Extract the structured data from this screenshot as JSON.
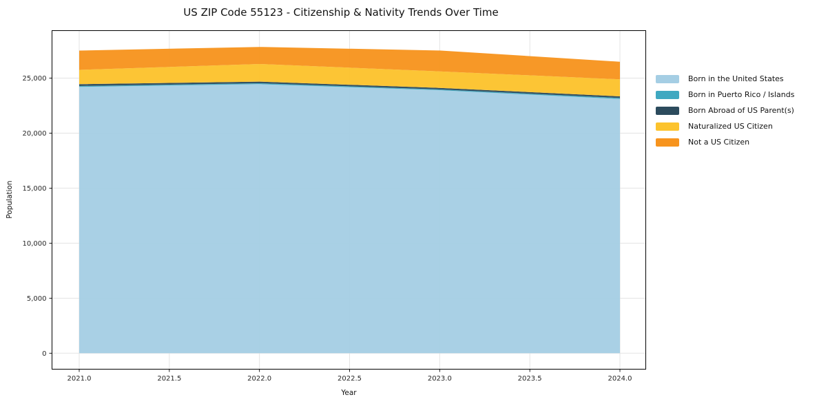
{
  "chart_data": {
    "type": "area",
    "stacked": true,
    "title": "US ZIP Code 55123 - Citizenship & Nativity Trends Over Time",
    "xlabel": "Year",
    "ylabel": "Population",
    "x": [
      2021,
      2022,
      2023,
      2024
    ],
    "series": [
      {
        "name": "Born in the United States",
        "color": "#a5cee4",
        "values": [
          24200,
          24450,
          23900,
          23100
        ]
      },
      {
        "name": "Born in Puerto Rico / Islands",
        "color": "#3fa8c1",
        "values": [
          80,
          80,
          70,
          90
        ]
      },
      {
        "name": "Born Abroad of US Parent(s)",
        "color": "#2c4b5d",
        "values": [
          170,
          150,
          140,
          150
        ]
      },
      {
        "name": "Naturalized US Citizen",
        "color": "#fcc32d",
        "values": [
          1300,
          1600,
          1500,
          1550
        ]
      },
      {
        "name": "Not a US Citizen",
        "color": "#f7941e",
        "values": [
          1750,
          1550,
          1900,
          1600
        ]
      }
    ],
    "totals": [
      27500,
      27830,
      27510,
      26490
    ],
    "xticks": [
      {
        "v": 2021.0,
        "label": "2021.0"
      },
      {
        "v": 2021.5,
        "label": "2021.5"
      },
      {
        "v": 2022.0,
        "label": "2022.0"
      },
      {
        "v": 2022.5,
        "label": "2022.5"
      },
      {
        "v": 2023.0,
        "label": "2023.0"
      },
      {
        "v": 2023.5,
        "label": "2023.5"
      },
      {
        "v": 2024.0,
        "label": "2024.0"
      }
    ],
    "yticks": [
      {
        "v": 0,
        "label": "0"
      },
      {
        "v": 5000,
        "label": "5,000"
      },
      {
        "v": 10000,
        "label": "10,000"
      },
      {
        "v": 15000,
        "label": "15,000"
      },
      {
        "v": 20000,
        "label": "20,000"
      },
      {
        "v": 25000,
        "label": "25,000"
      }
    ],
    "xlim": [
      2020.85,
      2024.15
    ],
    "ylim": [
      -1480,
      29340
    ],
    "grid": true,
    "legend_position": "right-outside",
    "grid_color": "#e3e3e3",
    "axis_color": "#000000",
    "background_color": "#ffffff"
  }
}
